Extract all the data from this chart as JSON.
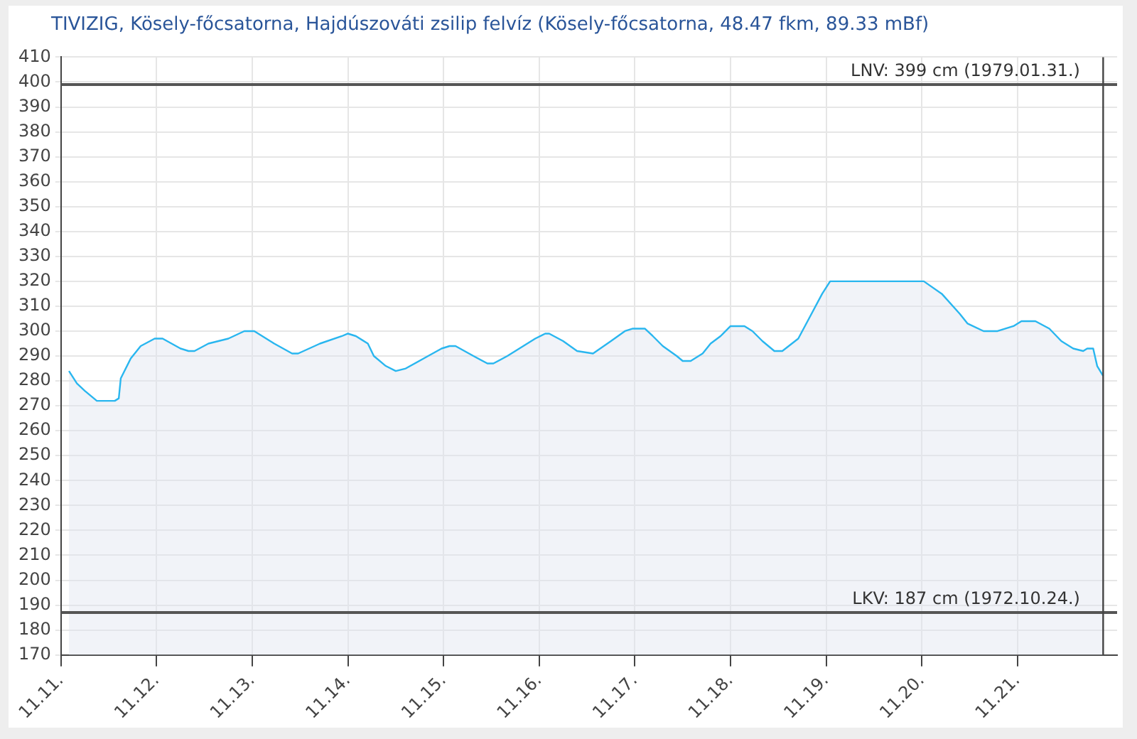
{
  "chart_data": {
    "type": "area",
    "title": "TIVIZIG, Kösely-főcsatorna, Hajdúszováti zsilip felvíz (Kösely-főcsatorna, 48.47 fkm, 89.33 mBf)",
    "x": [
      "--11-11T02:00",
      "--11-11T04:00",
      "--11-11T06:00",
      "--11-11T07:30",
      "--11-11T09:00",
      "--11-11T13:30",
      "--11-11T14:30",
      "--11-11T15:00",
      "--11-11T17:30",
      "--11-11T20:00",
      "--11-11T23:30",
      "--11-12T01:30",
      "--11-12T06:00",
      "--11-12T08:00",
      "--11-12T09:30",
      "--11-12T13:00",
      "--11-12T18:00",
      "--11-12T22:00",
      "--11-13T00:30",
      "--11-13T05:30",
      "--11-13T10:00",
      "--11-13T11:30",
      "--11-13T17:00",
      "--11-13T22:30",
      "--11-14T00:00",
      "--11-14T02:00",
      "--11-14T05:00",
      "--11-14T06:30",
      "--11-14T09:30",
      "--11-14T12:00",
      "--11-14T14:30",
      "--11-14T19:00",
      "--11-14T23:30",
      "--11-15T01:30",
      "--11-15T03:00",
      "--11-15T07:30",
      "--11-15T11:00",
      "--11-15T12:30",
      "--11-15T16:00",
      "--11-15T19:00",
      "--11-15T23:00",
      "--11-16T01:30",
      "--11-16T02:30",
      "--11-16T06:00",
      "--11-16T09:30",
      "--11-16T13:30",
      "--11-16T18:00",
      "--11-16T21:30",
      "--11-16T23:30",
      "--11-17T02:30",
      "--11-17T04:30",
      "--11-17T07:00",
      "--11-17T10:30",
      "--11-17T12:00",
      "--11-17T14:00",
      "--11-17T17:00",
      "--11-17T19:00",
      "--11-17T21:30",
      "--11-18T00:00",
      "--11-18T03:30",
      "--11-18T05:30",
      "--11-18T08:00",
      "--11-18T11:00",
      "--11-18T13:00",
      "--11-18T17:00",
      "--11-18T20:00",
      "--11-18T23:00",
      "--11-19T01:00",
      "--11-19T02:30",
      "--11-19T13:00",
      "--11-19T17:00",
      "--11-20T00:30",
      "--11-20T05:00",
      "--11-20T09:30",
      "--11-20T11:30",
      "--11-20T15:30",
      "--11-20T19:00",
      "--11-20T23:00",
      "--11-21T01:00",
      "--11-21T04:30",
      "--11-21T08:00",
      "--11-21T11:00",
      "--11-21T14:00",
      "--11-21T16:30",
      "--11-21T17:30",
      "--11-21T19:00",
      "--11-21T20:00",
      "--11-21T21:30"
    ],
    "series": [
      {
        "color": "#29b6ef",
        "values": [
          284,
          279,
          276,
          274,
          272,
          272,
          273,
          281,
          289,
          294,
          297,
          297,
          293,
          292,
          292,
          295,
          297,
          300,
          300,
          295,
          291,
          291,
          295,
          298,
          299,
          298,
          295,
          290,
          286,
          284,
          285,
          289,
          293,
          294,
          294,
          290,
          287,
          287,
          290,
          293,
          297,
          299,
          299,
          296,
          292,
          291,
          296,
          300,
          301,
          301,
          298,
          294,
          290,
          288,
          288,
          291,
          295,
          298,
          302,
          302,
          300,
          296,
          292,
          292,
          297,
          306,
          315,
          320,
          320,
          320,
          320,
          320,
          315,
          307,
          303,
          300,
          300,
          302,
          304,
          304,
          301,
          296,
          293,
          292,
          293,
          293,
          286,
          282
        ]
      }
    ],
    "xlim": [
      "--11-11",
      "--11-22T01:00"
    ],
    "xticks": [
      {
        "value": "--11-11",
        "label": "11.11."
      },
      {
        "value": "--11-12",
        "label": "11.12."
      },
      {
        "value": "--11-13",
        "label": "11.13."
      },
      {
        "value": "--11-14",
        "label": "11.14."
      },
      {
        "value": "--11-15",
        "label": "11.15."
      },
      {
        "value": "--11-16",
        "label": "11.16."
      },
      {
        "value": "--11-17",
        "label": "11.17."
      },
      {
        "value": "--11-18",
        "label": "11.18."
      },
      {
        "value": "--11-19",
        "label": "11.19."
      },
      {
        "value": "--11-20",
        "label": "11.20."
      },
      {
        "value": "--11-21",
        "label": "11.21."
      }
    ],
    "ylim": [
      170,
      410
    ],
    "yticks": [
      170,
      180,
      190,
      200,
      210,
      220,
      230,
      240,
      250,
      260,
      270,
      280,
      290,
      300,
      310,
      320,
      330,
      340,
      350,
      360,
      370,
      380,
      390,
      400,
      410
    ],
    "ref_lines": [
      {
        "axis": "y",
        "value": 399,
        "label": "LNV: 399 cm (1979.01.31.)",
        "color": "#555555"
      },
      {
        "axis": "y",
        "value": 187,
        "label": "LKV: 187 cm (1972.10.24.)",
        "color": "#555555"
      },
      {
        "axis": "x",
        "value": "--11-21T21:30",
        "label": null,
        "color": "#444444"
      }
    ],
    "grid": true,
    "legend": false,
    "marker": "none",
    "line_style": "solid"
  }
}
